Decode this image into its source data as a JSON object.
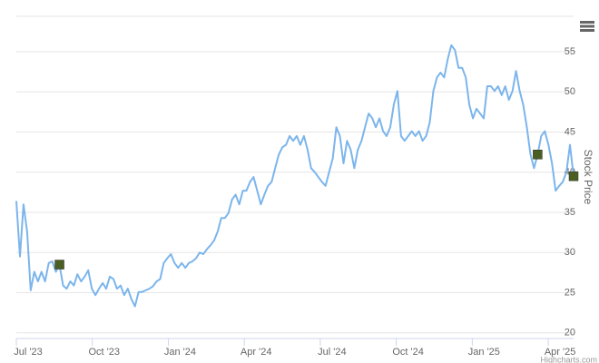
{
  "chart_data": {
    "type": "line",
    "y_axis_title": "Stock Price",
    "credits": "Highcharts.com",
    "xlim": [
      "2023-07",
      "2025-05"
    ],
    "xticks": [
      {
        "value": "2023-07",
        "label": "Jul '23"
      },
      {
        "value": "2023-10",
        "label": "Oct '23"
      },
      {
        "value": "2024-01",
        "label": "Jan '24"
      },
      {
        "value": "2024-04",
        "label": "Apr '24"
      },
      {
        "value": "2024-07",
        "label": "Jul '24"
      },
      {
        "value": "2024-10",
        "label": "Oct '24"
      },
      {
        "value": "2025-01",
        "label": "Jan '25"
      },
      {
        "value": "2025-04",
        "label": "Apr '25"
      }
    ],
    "ylim": [
      19.3,
      59.4
    ],
    "yticks": [
      20,
      25,
      30,
      35,
      40,
      45,
      50,
      55
    ],
    "grid": true,
    "series": [
      {
        "color": "#7cb5ec",
        "values": [
          36.4,
          29.5,
          36.0,
          32.6,
          25.3,
          27.6,
          26.4,
          27.6,
          26.4,
          28.7,
          28.9,
          27.6,
          28.5,
          25.9,
          25.5,
          26.4,
          25.9,
          27.3,
          26.4,
          27.0,
          27.8,
          25.5,
          24.7,
          25.5,
          26.2,
          25.5,
          27.0,
          26.7,
          25.5,
          25.9,
          24.7,
          25.5,
          24.2,
          23.3,
          25.1,
          25.1,
          25.3,
          25.5,
          25.8,
          26.4,
          26.7,
          28.7,
          29.3,
          29.8,
          28.7,
          28.1,
          28.7,
          28.1,
          28.7,
          28.9,
          29.3,
          30.0,
          29.8,
          30.4,
          30.9,
          31.5,
          32.6,
          34.3,
          34.3,
          34.9,
          36.6,
          37.2,
          36.0,
          37.7,
          37.7,
          38.8,
          39.4,
          37.7,
          36.0,
          37.2,
          38.3,
          38.8,
          40.5,
          42.2,
          43.1,
          43.4,
          44.5,
          43.9,
          44.5,
          43.4,
          44.5,
          42.8,
          40.5,
          40.0,
          39.4,
          38.8,
          38.3,
          40.0,
          41.7,
          45.6,
          44.5,
          41.1,
          43.9,
          42.8,
          40.5,
          42.8,
          43.9,
          45.6,
          47.3,
          46.7,
          45.6,
          46.7,
          45.1,
          44.5,
          45.6,
          48.4,
          50.1,
          44.5,
          43.9,
          44.5,
          45.1,
          44.5,
          45.1,
          43.9,
          44.5,
          46.2,
          50.1,
          51.8,
          52.4,
          51.8,
          54.1,
          55.8,
          55.2,
          53.0,
          53.0,
          51.8,
          48.4,
          46.7,
          47.9,
          47.3,
          46.7,
          50.7,
          50.7,
          50.1,
          50.7,
          49.6,
          50.7,
          49.0,
          50.1,
          52.6,
          50.1,
          48.4,
          45.6,
          42.2,
          40.5,
          42.2,
          44.5,
          45.1,
          43.4,
          41.1,
          37.7,
          38.3,
          38.8,
          40.0,
          43.4,
          39.5
        ]
      },
      {
        "color": "#4a5e23",
        "marker": "square",
        "values": [
          null,
          null,
          null,
          null,
          null,
          null,
          null,
          null,
          null,
          null,
          null,
          null,
          28.5,
          null,
          null,
          null,
          null,
          null,
          null,
          null,
          null,
          null,
          null,
          null,
          null,
          null,
          null,
          null,
          null,
          null,
          null,
          null,
          null,
          null,
          null,
          null,
          null,
          null,
          null,
          null,
          null,
          null,
          null,
          null,
          null,
          null,
          null,
          null,
          null,
          null,
          null,
          null,
          null,
          null,
          null,
          null,
          null,
          null,
          null,
          null,
          null,
          null,
          null,
          null,
          null,
          null,
          null,
          null,
          null,
          null,
          null,
          null,
          null,
          null,
          null,
          null,
          null,
          null,
          null,
          null,
          null,
          null,
          null,
          null,
          null,
          null,
          null,
          null,
          null,
          null,
          null,
          null,
          null,
          null,
          null,
          null,
          null,
          null,
          null,
          null,
          null,
          null,
          null,
          null,
          null,
          null,
          null,
          null,
          null,
          null,
          null,
          null,
          null,
          null,
          null,
          null,
          null,
          null,
          null,
          null,
          null,
          null,
          null,
          null,
          null,
          null,
          null,
          null,
          null,
          null,
          null,
          null,
          null,
          null,
          null,
          null,
          null,
          null,
          null,
          null,
          null,
          null,
          null,
          null,
          null,
          42.2,
          null,
          null,
          null,
          null,
          null,
          null,
          null,
          null,
          null,
          39.5
        ]
      }
    ]
  }
}
